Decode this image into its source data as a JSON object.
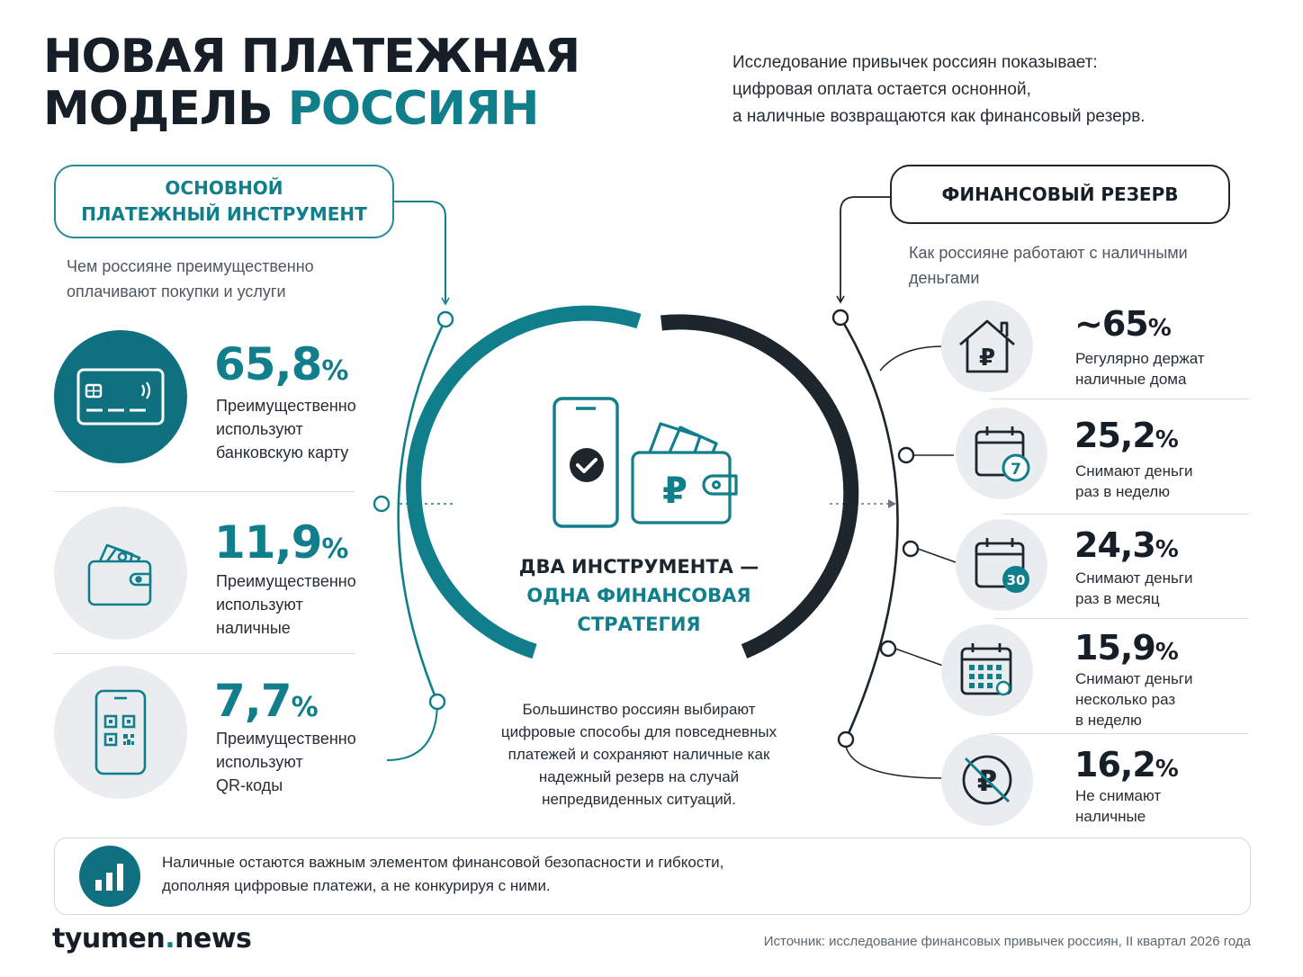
{
  "title": {
    "line1": "НОВАЯ ПЛАТЕЖНАЯ",
    "line2_plain": "МОДЕЛЬ ",
    "line2_accent": "РОССИЯН"
  },
  "intro": {
    "line1": "Исследование привычек россиян показывает:",
    "line2": "цифровая оплата остается оснонной,",
    "line3": "а наличные возвращаются как финансовый резерв."
  },
  "left": {
    "heading": {
      "line1": "ОСНОВНОЙ",
      "line2": "ПЛАТЕЖНЫЙ ИНСТРУМЕНТ"
    },
    "subtitle": {
      "line1": "Чем россияне преимущественно",
      "line2": "оплачивают покупки и услуги"
    },
    "items": [
      {
        "icon": "bank-card-icon",
        "value": "65,8",
        "unit": "%",
        "desc1": "Преимущественно",
        "desc2": "используют",
        "desc3": "банковскую карту"
      },
      {
        "icon": "wallet-cash-icon",
        "value": "11,9",
        "unit": "%",
        "desc1": "Преимущественно",
        "desc2": "используют",
        "desc3": "наличные"
      },
      {
        "icon": "phone-qr-icon",
        "value": "7,7",
        "unit": "%",
        "desc1": "Преимущественно",
        "desc2": "используют",
        "desc3": "QR-коды"
      }
    ]
  },
  "center": {
    "title_line1": "ДВА ИНСТРУМЕНТА —",
    "title_line2": "ОДНА ФИНАНСОВАЯ",
    "title_line3": "СТРАТЕГИЯ",
    "note": {
      "line1": "Большинство россиян выбирают",
      "line2": "цифровые способы для повседневных",
      "line3": "платежей и сохраняют наличные как",
      "line4": "надежный резерв на случай",
      "line5": "непредвиденных ситуаций."
    }
  },
  "right": {
    "heading": "ФИНАНСОВЫЙ РЕЗЕРВ",
    "subtitle": {
      "line1": "Как россияне работают с наличными",
      "line2": "деньгами"
    },
    "items": [
      {
        "icon": "house-ruble-icon",
        "value": "~65",
        "unit": "%",
        "desc1": "Регулярно держат",
        "desc2": "наличные дома",
        "desc3": "",
        "badge": ""
      },
      {
        "icon": "calendar-7-icon",
        "value": "25,2",
        "unit": "%",
        "desc1": "Снимают деньги",
        "desc2": "раз в неделю",
        "desc3": "",
        "badge": "7"
      },
      {
        "icon": "calendar-30-icon",
        "value": "24,3",
        "unit": "%",
        "desc1": "Снимают деньги",
        "desc2": "раз в месяц",
        "desc3": "",
        "badge": "30"
      },
      {
        "icon": "calendar-grid-icon",
        "value": "15,9",
        "unit": "%",
        "desc1": "Снимают деньги",
        "desc2": "несколько раз",
        "desc3": "в неделю",
        "badge": ""
      },
      {
        "icon": "no-ruble-icon",
        "value": "16,2",
        "unit": "%",
        "desc1": "Не снимают",
        "desc2": "наличные",
        "desc3": "",
        "badge": ""
      }
    ]
  },
  "footer": {
    "line1": "Наличные остаются важным элементом финансовой безопасности и гибкости,",
    "line2": "дополняя цифровые платежи, а не конкурируя с ними.",
    "icon": "bar-chart-icon"
  },
  "brand": {
    "name": "tyumen",
    "dot": ".",
    "tld": "news"
  },
  "source": "Источник: исследование финансовых привычек россиян, II квартал 2026 года",
  "colors": {
    "teal": "#117e8c",
    "dark": "#1d252d",
    "light_circle": "#e9edf0",
    "teal_circle": "#0f7080"
  }
}
